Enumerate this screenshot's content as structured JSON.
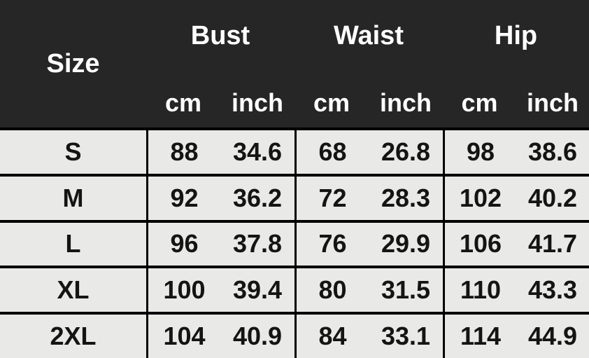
{
  "colors": {
    "header_bg": "#262626",
    "header_text": "#ffffff",
    "cell_bg": "#e9e9e7",
    "cell_text": "#141414",
    "grid_border": "#000000"
  },
  "chart_data": {
    "type": "table",
    "header": {
      "size_label": "Size",
      "groups": [
        {
          "label": "Bust",
          "units": [
            "cm",
            "inch"
          ]
        },
        {
          "label": "Waist",
          "units": [
            "cm",
            "inch"
          ]
        },
        {
          "label": "Hip",
          "units": [
            "cm",
            "inch"
          ]
        }
      ]
    },
    "rows": [
      {
        "size": "S",
        "values": [
          "88",
          "34.6",
          "68",
          "26.8",
          "98",
          "38.6"
        ]
      },
      {
        "size": "M",
        "values": [
          "92",
          "36.2",
          "72",
          "28.3",
          "102",
          "40.2"
        ]
      },
      {
        "size": "L",
        "values": [
          "96",
          "37.8",
          "76",
          "29.9",
          "106",
          "41.7"
        ]
      },
      {
        "size": "XL",
        "values": [
          "100",
          "39.4",
          "80",
          "31.5",
          "110",
          "43.3"
        ]
      },
      {
        "size": "2XL",
        "values": [
          "104",
          "40.9",
          "84",
          "33.1",
          "114",
          "44.9"
        ]
      }
    ]
  }
}
